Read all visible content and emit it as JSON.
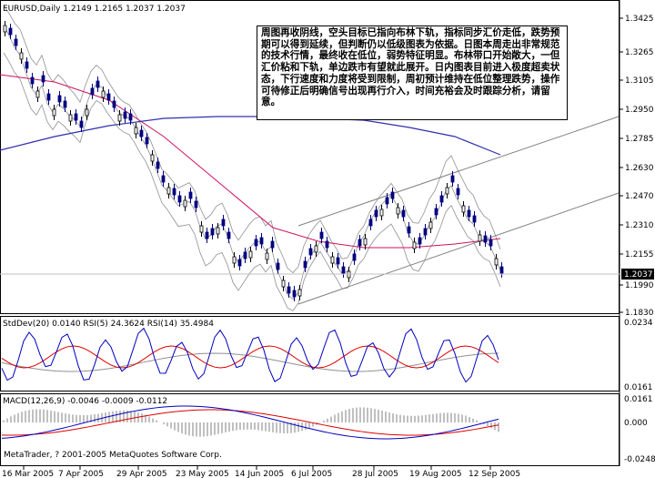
{
  "window": {
    "symbol_info": "EURUSD,Daily  1.2149 1.2165 1.2037 1.2037",
    "current_price": "1.2037",
    "copyright": "MetaTrader, ? 2001-2005 MetaQuotes Software Corp."
  },
  "annotation": {
    "text": "周图再收阴线，空头目标已指向布林下轨，指标同步汇价走低，跌势预期可以得到延续，但判断仍以低级图表为依据。日图本周走出非常规范的技术行情，最终收在低位，弱势特征明显。布林带口开始敞大，一但汇价粘和下轨，单边跌市有望就此展开。日内图表目前进入极度超卖状态，下行速度和力度将受到限制，周初预计维持在低位整理跌势，操作可待修正后明确信号出现再行介入，时间充裕会及时跟踪分析，请留意。"
  },
  "price_panel": {
    "y_ticks": [
      "1.3425",
      "1.3265",
      "1.3105",
      "1.2950",
      "1.2785",
      "1.2630",
      "1.2470",
      "1.2310",
      "1.2155",
      "1.1990",
      "1.1830"
    ],
    "colors": {
      "bull": "#000000",
      "bear": "#000080",
      "ma_fast": "#d01060",
      "ma_slow": "#3030b0",
      "bands": "#909090",
      "channel": "#808080"
    }
  },
  "stddev_panel": {
    "label": "StdDev(20) 0.0140  RSI(5) 24.3624  RSI(14) 35.4984",
    "y_ticks": [
      "0.0234",
      "0.0161"
    ]
  },
  "macd_panel": {
    "label": "MACD(12,26,9) -0.0046 -0.0009 -0.0112",
    "y_ticks": [
      "0.0161",
      "0.000",
      "-0.0248"
    ]
  },
  "x_ticks": [
    "16 Mar 2005",
    "7 Apr 2005",
    "29 Apr 2005",
    "23 May 2005",
    "14 Jun 2005",
    "6 Jul 2005",
    "28 Jul 2005",
    "19 Aug 2005",
    "12 Sep 2005"
  ]
}
